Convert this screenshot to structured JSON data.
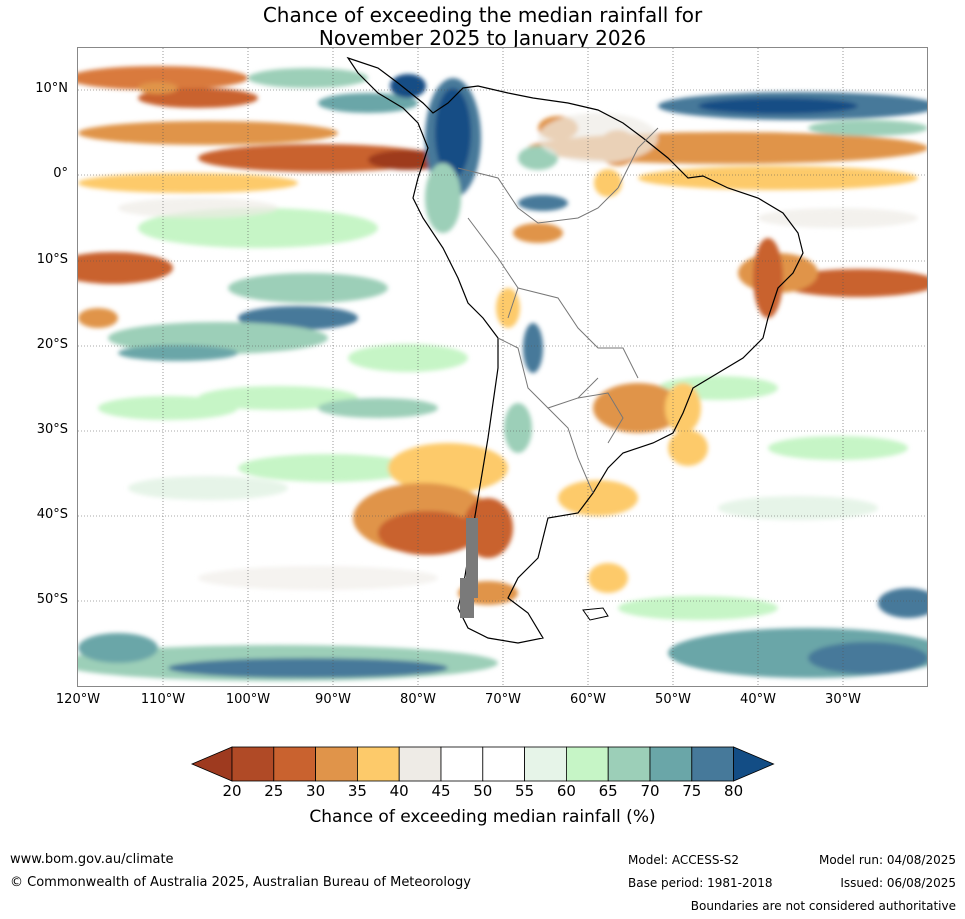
{
  "title_line1": "Chance of exceeding the median rainfall for",
  "title_line2": "November 2025 to January 2026",
  "lat_labels": [
    "10°N",
    "0°",
    "10°S",
    "20°S",
    "30°S",
    "40°S",
    "50°S"
  ],
  "lon_labels": [
    "120°W",
    "110°W",
    "100°W",
    "90°W",
    "80°W",
    "70°W",
    "60°W",
    "50°W",
    "40°W",
    "30°W"
  ],
  "colorbar": {
    "ticks": [
      "20",
      "25",
      "30",
      "35",
      "40",
      "45",
      "50",
      "55",
      "60",
      "65",
      "70",
      "75",
      "80"
    ],
    "colors": [
      "#9e3a1f",
      "#b04a26",
      "#c9622f",
      "#e0944a",
      "#fdca6a",
      "#eeebe6",
      "#ffffff",
      "#ffffff",
      "#e6f4e8",
      "#c6f5c6",
      "#9ccfb8",
      "#6aa6a8",
      "#46799a",
      "#134d85"
    ],
    "title": "Chance of exceeding median rainfall (%)"
  },
  "footer": {
    "website": "www.bom.gov.au/climate",
    "copyright": "© Commonwealth of Australia 2025, Australian Bureau of Meteorology",
    "model": "Model: ACCESS-S2",
    "base_period": "Base period: 1981-2018",
    "model_run": "Model run: 04/08/2025",
    "issued": "Issued: 06/08/2025",
    "disclaimer": "Boundaries are not considered authoritative"
  }
}
